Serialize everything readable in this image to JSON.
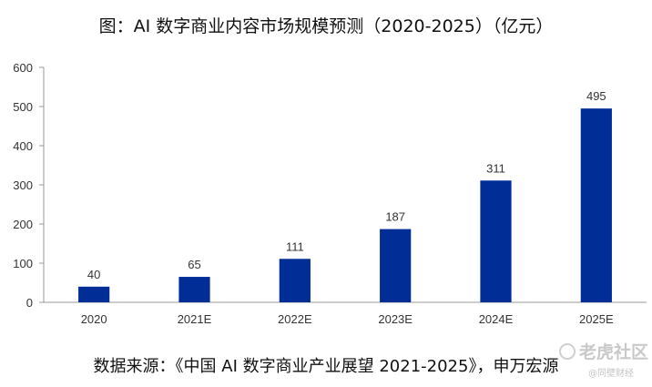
{
  "header": {
    "title": "图：AI 数字商业内容市场规模预测（2020-2025）（亿元）"
  },
  "chart_data": {
    "type": "bar",
    "categories": [
      "2020",
      "2021E",
      "2022E",
      "2023E",
      "2024E",
      "2025E"
    ],
    "values": [
      40,
      65,
      111,
      187,
      311,
      495
    ],
    "data_labels": [
      "40",
      "65",
      "111",
      "187",
      "311",
      "495"
    ],
    "yticks": [
      "0",
      "100",
      "200",
      "300",
      "400",
      "500",
      "600"
    ],
    "ylim": [
      0,
      600
    ],
    "xlabel": "",
    "ylabel": "",
    "grid": false,
    "legend": "none",
    "bar_color": "#002D96"
  },
  "footer": {
    "source": "数据来源：《中国 AI 数字商业产业展望 2021-2025》，申万宏源"
  },
  "watermark": {
    "brand": "老虎社区",
    "sub": "@同壁财经"
  }
}
